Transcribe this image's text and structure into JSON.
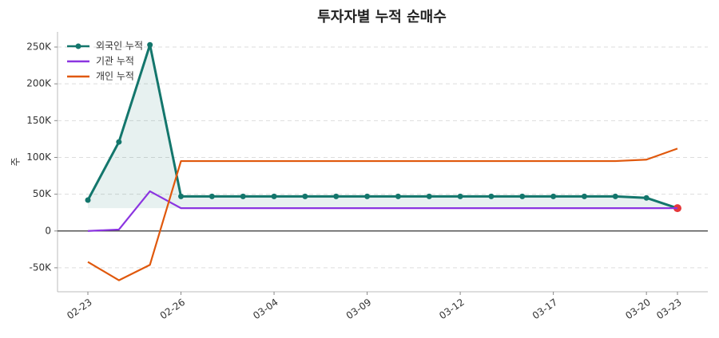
{
  "chart_data": {
    "type": "line",
    "title": "투자자별 누적 순매수",
    "y_label": "주",
    "categories": [
      "02-23",
      null,
      null,
      "02-26",
      null,
      null,
      "03-04",
      null,
      null,
      "03-09",
      null,
      null,
      "03-12",
      null,
      null,
      "03-17",
      null,
      null,
      "03-20",
      "03-23"
    ],
    "series": [
      {
        "name": "외국인 누적",
        "color": "#13766c",
        "markers": true,
        "values": [
          42000,
          121000,
          253000,
          47000,
          47000,
          47000,
          47000,
          47000,
          47000,
          47000,
          47000,
          47000,
          47000,
          47000,
          47000,
          47000,
          47000,
          47000,
          45000,
          31000
        ]
      },
      {
        "name": "기관 누적",
        "color": "#8b35e0",
        "markers": false,
        "values": [
          0,
          2000,
          54000,
          31000,
          31000,
          31000,
          31000,
          31000,
          31000,
          31000,
          31000,
          31000,
          31000,
          31000,
          31000,
          31000,
          31000,
          31000,
          31000,
          31000
        ]
      },
      {
        "name": "개인 누적",
        "color": "#e0580c",
        "markers": false,
        "values": [
          -42000,
          -67000,
          -46000,
          95000,
          95000,
          95000,
          95000,
          95000,
          95000,
          95000,
          95000,
          95000,
          95000,
          95000,
          95000,
          95000,
          95000,
          95000,
          97000,
          112000
        ]
      }
    ],
    "ylim": [
      -82600,
      270600
    ],
    "yticks": [
      {
        "value": -50000,
        "label": "-50K"
      },
      0,
      {
        "value": 50000,
        "label": "50K"
      },
      {
        "value": 100000,
        "label": "100K"
      },
      {
        "value": 150000,
        "label": "150K"
      },
      {
        "value": 200000,
        "label": "200K"
      },
      {
        "value": 250000,
        "label": "250K"
      }
    ],
    "grid": true,
    "legend": "upper-left",
    "highlight_color": "#e5383b"
  }
}
